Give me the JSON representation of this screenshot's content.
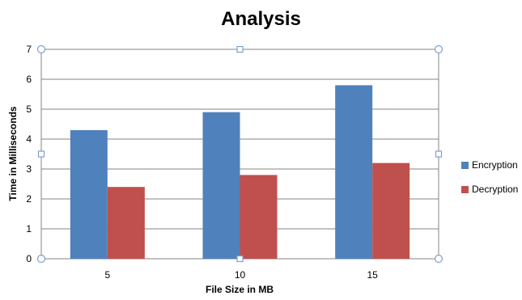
{
  "chart_data": {
    "type": "bar",
    "title": "Analysis",
    "xlabel": "File Size in MB",
    "ylabel": "Time in Milliseconds",
    "categories": [
      "5",
      "10",
      "15"
    ],
    "series": [
      {
        "name": "Encryption",
        "values": [
          4.3,
          4.9,
          5.8
        ],
        "color": "#4f81bd"
      },
      {
        "name": "Decryption",
        "values": [
          2.4,
          2.8,
          3.2
        ],
        "color": "#c0504d"
      }
    ],
    "ylim": [
      0,
      7
    ],
    "yticks": [
      "0",
      "1",
      "2",
      "3",
      "4",
      "5",
      "6",
      "7"
    ],
    "grid": true,
    "legend_position": "right"
  }
}
